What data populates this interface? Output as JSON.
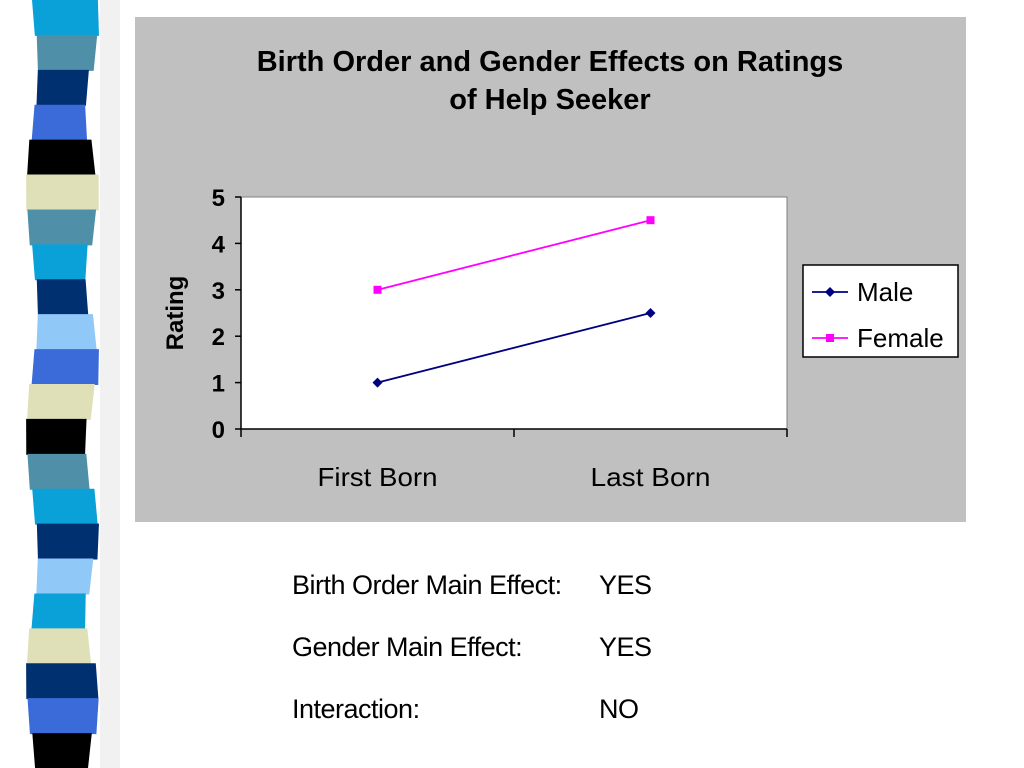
{
  "decoration": {
    "stripe_colors": [
      "#0aa0d8",
      "#4f90a8",
      "#003070",
      "#3b6bd8",
      "#000000",
      "#e0e0b8",
      "#4f90a8",
      "#0aa0d8",
      "#003070",
      "#90c8f8",
      "#3b6bd8",
      "#e0e0b8",
      "#000000",
      "#4f90a8",
      "#0aa0d8",
      "#003070",
      "#90c8f8",
      "#0aa0d8",
      "#e0e0b8",
      "#003070",
      "#3b6bd8",
      "#000000"
    ]
  },
  "chart_data": {
    "type": "line",
    "title": [
      "Birth Order and Gender Effects on Ratings",
      "of Help Seeker"
    ],
    "ylabel": "Rating",
    "xlabel": "",
    "categories": [
      "First Born",
      "Last Born"
    ],
    "ylim": [
      0,
      5
    ],
    "yticks": [
      "0",
      "1",
      "2",
      "3",
      "4",
      "5"
    ],
    "grid": false,
    "legend_position": "right",
    "series": [
      {
        "name": "Male",
        "values": [
          1,
          2.5
        ],
        "color": "#000080",
        "marker": "diamond"
      },
      {
        "name": "Female",
        "values": [
          3,
          4.5
        ],
        "color": "#ff00ff",
        "marker": "square"
      }
    ],
    "plot_background": "#ffffff",
    "chart_background": "#c0c0c0"
  },
  "effects": [
    {
      "label": "Birth Order Main Effect:",
      "value": "YES"
    },
    {
      "label": "Gender Main Effect:",
      "value": "YES"
    },
    {
      "label": "Interaction:",
      "value": "NO"
    }
  ]
}
